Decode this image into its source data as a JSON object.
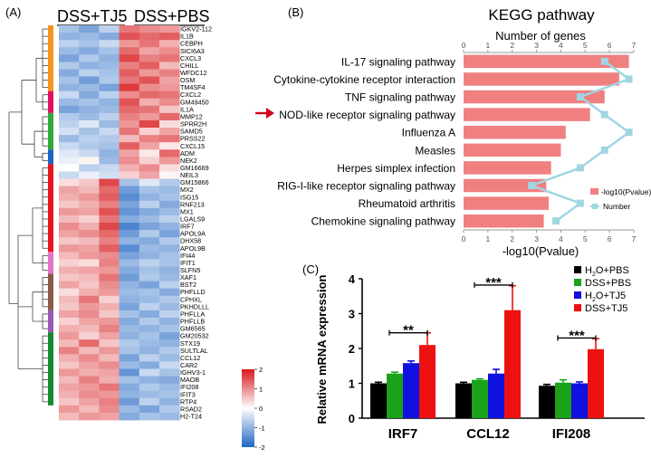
{
  "panels": {
    "a": "(A)",
    "b": "(B)",
    "c": "(C)"
  },
  "colors": {
    "heat_low": "#2166c3",
    "heat_mid": "#ffffff",
    "heat_high": "#d7191c",
    "kegg_bar": "#f08080",
    "kegg_line": "#9fd6e2",
    "arrow": "#d0021b",
    "qpcr_h2o_pbs": "#000000",
    "qpcr_dss_pbs": "#1aa31a",
    "qpcr_h2o_tj5": "#1010e0",
    "qpcr_dss_tj5": "#ee1111"
  },
  "chart_data": [
    {
      "type": "heatmap",
      "group_labels": [
        "DSS+TJ5",
        "DSS+PBS"
      ],
      "columns": 6,
      "colorbar": {
        "ticks": [
          2,
          1,
          0,
          -1,
          -2
        ],
        "range": [
          -2,
          2
        ]
      },
      "cluster_colors": [
        "#f7941d",
        "#e0115f",
        "#2eaa3a",
        "#1f63c4",
        "#e8141b",
        "#e673c8",
        "#8b5a4a",
        "#9b59b6",
        "#158a2e"
      ],
      "cluster_sizes": [
        9,
        3,
        5,
        2,
        12,
        3,
        5,
        3,
        10
      ],
      "genes": [
        "IGKV2-112",
        "IL1B",
        "CEBPH",
        "SICI6A3",
        "CXCL3",
        "CHILL",
        "WFDC12",
        "OSM",
        "TM4SF4",
        "CXCL2",
        "GM49450",
        "IL1A",
        "MMP12",
        "SPRR2H",
        "SAMD5",
        "PRSS22",
        "CXCL15",
        "ADM",
        "NEK2",
        "GM16669",
        "NEIL3",
        "GM15866",
        "MX2",
        "ISG15",
        "RNF213",
        "MX1",
        "LGALS9",
        "IRF7",
        "APOL9A",
        "DHX58",
        "APOL9B",
        "IFI44",
        "IFIT1",
        "SLFN5",
        "XAF1",
        "BST2",
        "PHFLLD",
        "CPHXL",
        "PKHDLLL",
        "PHFLLA",
        "PHFLLB",
        "GM6565",
        "GM20532",
        "STX19",
        "SULTLAL",
        "CCL12",
        "CAR2",
        "IGHV3-1",
        "MAOB",
        "IFI208",
        "IFIT3",
        "RTP4",
        "RSAD2",
        "H2-T24"
      ],
      "values": [
        [
          -0.8,
          -1.2,
          -0.6,
          1.2,
          1.0,
          0.9
        ],
        [
          -1.0,
          -0.9,
          -1.1,
          1.5,
          1.3,
          1.4
        ],
        [
          -0.6,
          -0.8,
          -0.5,
          0.9,
          1.2,
          0.7
        ],
        [
          -0.9,
          -1.1,
          -0.8,
          1.3,
          0.8,
          1.0
        ],
        [
          -1.2,
          -0.7,
          -1.0,
          1.6,
          1.1,
          1.2
        ],
        [
          -0.7,
          -1.0,
          -0.9,
          1.1,
          1.4,
          0.6
        ],
        [
          -1.1,
          -0.6,
          -0.8,
          1.4,
          0.9,
          1.1
        ],
        [
          -0.8,
          -1.3,
          -0.7,
          1.2,
          1.5,
          0.8
        ],
        [
          -1.0,
          -0.9,
          -1.2,
          1.7,
          1.0,
          0.9
        ],
        [
          -0.5,
          -1.1,
          -0.6,
          1.0,
          1.3,
          1.2
        ],
        [
          -0.9,
          -0.8,
          -1.0,
          1.5,
          0.7,
          1.0
        ],
        [
          -1.2,
          -1.0,
          -0.9,
          1.3,
          1.2,
          0.5
        ],
        [
          -0.7,
          -0.9,
          -0.6,
          1.1,
          0.9,
          1.3
        ],
        [
          -0.6,
          -0.3,
          -0.9,
          0.9,
          1.6,
          0.3
        ],
        [
          -0.4,
          -0.8,
          -0.5,
          1.2,
          0.4,
          0.8
        ],
        [
          -0.9,
          -0.6,
          -0.7,
          0.6,
          1.1,
          1.2
        ],
        [
          -0.5,
          -0.7,
          -0.8,
          1.4,
          0.8,
          0.2
        ],
        [
          -0.3,
          -0.5,
          -1.0,
          0.8,
          0.2,
          1.3
        ],
        [
          -0.2,
          0.1,
          -0.9,
          1.0,
          0.4,
          0.9
        ],
        [
          0.0,
          -0.6,
          -0.5,
          0.7,
          1.0,
          0.3
        ],
        [
          -0.5,
          -0.2,
          -0.4,
          0.4,
          0.8,
          0.1
        ],
        [
          0.3,
          0.5,
          1.6,
          -0.8,
          -0.3,
          -0.7
        ],
        [
          0.8,
          0.6,
          1.3,
          -1.3,
          -0.8,
          -0.9
        ],
        [
          0.7,
          0.9,
          1.4,
          -1.5,
          -1.0,
          -0.8
        ],
        [
          0.5,
          0.7,
          1.1,
          -1.2,
          -0.6,
          -1.1
        ],
        [
          0.9,
          0.8,
          1.5,
          -1.4,
          -1.1,
          -0.9
        ],
        [
          0.6,
          0.4,
          1.2,
          -1.1,
          -0.9,
          -0.6
        ],
        [
          1.0,
          0.7,
          1.6,
          -1.6,
          -1.2,
          -1.0
        ],
        [
          0.8,
          1.0,
          1.3,
          -1.3,
          -0.7,
          -1.2
        ],
        [
          0.5,
          0.6,
          1.1,
          -1.0,
          -1.1,
          -0.7
        ],
        [
          0.9,
          0.8,
          1.4,
          -1.5,
          -0.9,
          -1.0
        ],
        [
          0.6,
          0.9,
          1.0,
          -1.2,
          -1.0,
          -0.8
        ],
        [
          0.4,
          0.3,
          1.1,
          -0.9,
          -0.6,
          -0.8
        ],
        [
          0.7,
          0.8,
          0.9,
          -1.1,
          -0.8,
          -1.0
        ],
        [
          0.5,
          0.6,
          1.2,
          -1.3,
          -0.7,
          -0.9
        ],
        [
          0.8,
          0.5,
          1.0,
          -1.0,
          -1.2,
          -0.6
        ],
        [
          0.3,
          0.7,
          0.9,
          -0.9,
          -0.8,
          -1.1
        ],
        [
          0.6,
          1.2,
          0.4,
          -1.0,
          -0.9,
          -0.7
        ],
        [
          0.5,
          0.9,
          0.7,
          -1.2,
          -0.6,
          -0.9
        ],
        [
          0.8,
          1.0,
          0.5,
          -0.8,
          -1.1,
          -0.6
        ],
        [
          0.4,
          0.8,
          0.9,
          -1.1,
          -0.7,
          -1.0
        ],
        [
          0.7,
          0.6,
          1.1,
          -0.9,
          -1.0,
          -0.8
        ],
        [
          0.9,
          0.4,
          0.8,
          -1.0,
          -0.8,
          -1.2
        ],
        [
          0.6,
          1.3,
          0.5,
          -0.7,
          -0.9,
          -1.0
        ],
        [
          1.1,
          0.6,
          0.9,
          -0.8,
          -1.0,
          -0.7
        ],
        [
          0.7,
          1.0,
          0.6,
          -1.2,
          -0.6,
          -0.9
        ],
        [
          0.5,
          0.8,
          1.0,
          -0.9,
          -1.1,
          -0.5
        ],
        [
          0.9,
          0.7,
          0.8,
          -1.4,
          -0.5,
          -0.8
        ],
        [
          0.6,
          1.1,
          0.7,
          -0.8,
          -1.0,
          -1.1
        ],
        [
          0.8,
          0.9,
          1.2,
          -1.1,
          -0.7,
          -0.9
        ],
        [
          0.7,
          1.0,
          0.9,
          -1.0,
          -0.9,
          -0.8
        ],
        [
          0.5,
          0.8,
          1.1,
          -1.3,
          -0.6,
          -1.0
        ],
        [
          0.9,
          0.6,
          1.0,
          -0.9,
          -1.2,
          -0.7
        ],
        [
          0.6,
          0.9,
          0.8,
          -1.1,
          -0.8,
          -0.9
        ]
      ]
    },
    {
      "type": "bar",
      "title": "KEGG pathway",
      "top_axis_label": "Number of genes",
      "xlabel": "-log10(Pvalue)",
      "top_ticks": [
        0,
        1,
        2,
        3,
        4,
        5,
        6,
        7
      ],
      "bottom_ticks": [
        0,
        1,
        2,
        3,
        4,
        5,
        6,
        7
      ],
      "xlim": [
        0,
        7
      ],
      "categories": [
        "IL-17 signaling pathway",
        "Cytokine-cytokine receptor interaction",
        "TNF signaling pathway",
        "NOD-like receptor signaling pathway",
        "Influenza A",
        "Measles",
        "Herpes simplex infection",
        "RIG-I-like receptor signaling pathway",
        "Rheumatoid arthritis",
        "Chemokine signaling pathway"
      ],
      "series": [
        {
          "name": "-log10(Pvalue)",
          "values": [
            6.8,
            6.4,
            5.8,
            5.2,
            4.2,
            4.0,
            3.6,
            3.4,
            3.5,
            3.3
          ]
        },
        {
          "name": "Number",
          "values": [
            5.8,
            6.8,
            4.8,
            5.8,
            6.8,
            5.8,
            4.8,
            2.8,
            4.8,
            3.8
          ]
        }
      ],
      "highlighted": "NOD-like receptor signaling pathway",
      "legend_position": "bottom-right"
    },
    {
      "type": "bar",
      "ylabel": "Relative mRNA expression",
      "ylim": [
        0,
        4
      ],
      "yticks": [
        0,
        1,
        2,
        3,
        4
      ],
      "categories": [
        "IRF7",
        "CCL12",
        "IFI208"
      ],
      "legend_position": "top-right",
      "series": [
        {
          "name": "H2O+PBS",
          "label_main": "H",
          "label_sub": "2",
          "label_rest": "O+PBS",
          "values": [
            1.0,
            1.0,
            0.93
          ],
          "errors": [
            0.03,
            0.03,
            0.04
          ]
        },
        {
          "name": "DSS+PBS",
          "label_main": "DSS+PBS",
          "label_sub": "",
          "label_rest": "",
          "values": [
            1.28,
            1.1,
            1.02
          ],
          "errors": [
            0.04,
            0.03,
            0.08
          ]
        },
        {
          "name": "H2O+TJ5",
          "label_main": "H",
          "label_sub": "2",
          "label_rest": "O+TJ5",
          "values": [
            1.58,
            1.28,
            1.0
          ],
          "errors": [
            0.06,
            0.12,
            0.04
          ]
        },
        {
          "name": "DSS+TJ5",
          "label_main": "DSS+TJ5",
          "label_sub": "",
          "label_rest": "",
          "values": [
            2.1,
            3.1,
            1.98
          ],
          "errors": [
            0.35,
            0.7,
            0.3
          ]
        }
      ],
      "significance": [
        {
          "category": "IRF7",
          "label": "**"
        },
        {
          "category": "CCL12",
          "label": "***"
        },
        {
          "category": "IFI208",
          "label": "***"
        }
      ]
    }
  ]
}
